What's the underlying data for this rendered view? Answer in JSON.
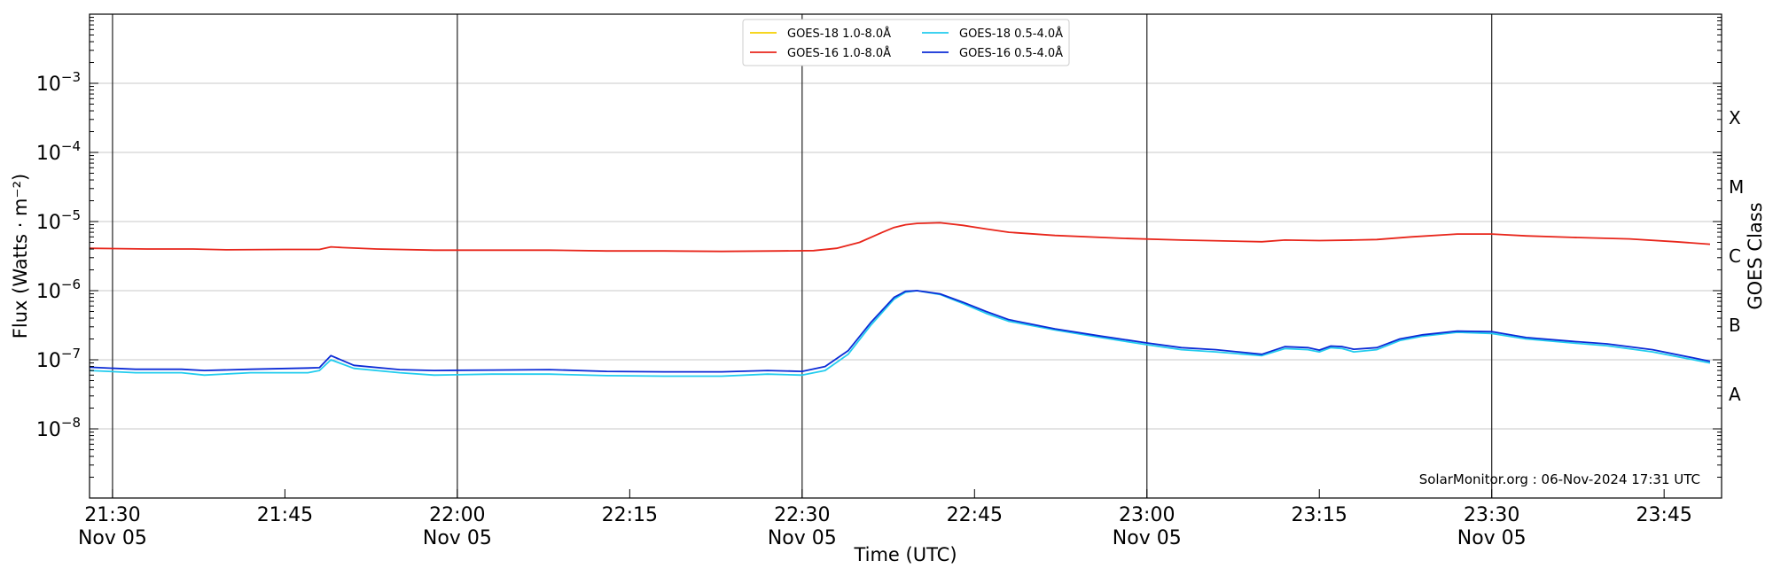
{
  "chart_data": {
    "type": "line",
    "title": "",
    "xlabel": "Time (UTC)",
    "ylabel": "Flux (Watts · m⁻²)",
    "y2label": "GOES Class",
    "yscale": "log",
    "ylim": [
      1e-09,
      0.01
    ],
    "xlim": [
      "21:28",
      "23:50"
    ],
    "grid": "horizontal",
    "legend_position": "top-center",
    "watermark": "SolarMonitor.org : 06-Nov-2024 17:31 UTC",
    "y_ticks": [
      {
        "value": 1e-08,
        "base": "10",
        "exp": "−8"
      },
      {
        "value": 1e-07,
        "base": "10",
        "exp": "−7"
      },
      {
        "value": 1e-06,
        "base": "10",
        "exp": "−6"
      },
      {
        "value": 1e-05,
        "base": "10",
        "exp": "−5"
      },
      {
        "value": 0.0001,
        "base": "10",
        "exp": "−4"
      },
      {
        "value": 0.001,
        "base": "10",
        "exp": "−3"
      }
    ],
    "x_ticks": [
      {
        "time": "21:30",
        "label": "21:30",
        "sublabel": "Nov 05"
      },
      {
        "time": "21:45",
        "label": "21:45",
        "sublabel": ""
      },
      {
        "time": "22:00",
        "label": "22:00",
        "sublabel": "Nov 05"
      },
      {
        "time": "22:15",
        "label": "22:15",
        "sublabel": ""
      },
      {
        "time": "22:30",
        "label": "22:30",
        "sublabel": "Nov 05"
      },
      {
        "time": "22:45",
        "label": "22:45",
        "sublabel": ""
      },
      {
        "time": "23:00",
        "label": "23:00",
        "sublabel": "Nov 05"
      },
      {
        "time": "23:15",
        "label": "23:15",
        "sublabel": ""
      },
      {
        "time": "23:30",
        "label": "23:30",
        "sublabel": "Nov 05"
      },
      {
        "time": "23:45",
        "label": "23:45",
        "sublabel": ""
      }
    ],
    "vertical_lines": [
      "21:30",
      "22:00",
      "22:30",
      "23:00",
      "23:30"
    ],
    "goes_classes": [
      {
        "label": "A",
        "value": 3.16e-08
      },
      {
        "label": "B",
        "value": 3.16e-07
      },
      {
        "label": "C",
        "value": 3.16e-06
      },
      {
        "label": "M",
        "value": 3.16e-05
      },
      {
        "label": "X",
        "value": 0.000316
      }
    ],
    "series": [
      {
        "name": "GOES-18 1.0-8.0Å",
        "color": "#f5d000",
        "points": []
      },
      {
        "name": "GOES-16 1.0-8.0Å",
        "color": "#e8261b",
        "points": [
          [
            "21:28",
            4.1e-06
          ],
          [
            "21:33",
            4e-06
          ],
          [
            "21:37",
            4e-06
          ],
          [
            "21:40",
            3.9e-06
          ],
          [
            "21:45",
            3.95e-06
          ],
          [
            "21:48",
            3.95e-06
          ],
          [
            "21:49",
            4.3e-06
          ],
          [
            "21:50",
            4.2e-06
          ],
          [
            "21:53",
            4e-06
          ],
          [
            "21:58",
            3.85e-06
          ],
          [
            "22:03",
            3.85e-06
          ],
          [
            "22:08",
            3.85e-06
          ],
          [
            "22:13",
            3.75e-06
          ],
          [
            "22:18",
            3.75e-06
          ],
          [
            "22:23",
            3.7e-06
          ],
          [
            "22:28",
            3.75e-06
          ],
          [
            "22:31",
            3.8e-06
          ],
          [
            "22:33",
            4.1e-06
          ],
          [
            "22:35",
            5e-06
          ],
          [
            "22:37",
            7e-06
          ],
          [
            "22:38",
            8.2e-06
          ],
          [
            "22:39",
            9e-06
          ],
          [
            "22:40",
            9.4e-06
          ],
          [
            "22:42",
            9.6e-06
          ],
          [
            "22:44",
            8.8e-06
          ],
          [
            "22:46",
            7.8e-06
          ],
          [
            "22:48",
            7e-06
          ],
          [
            "22:52",
            6.3e-06
          ],
          [
            "22:58",
            5.7e-06
          ],
          [
            "23:03",
            5.4e-06
          ],
          [
            "23:10",
            5.1e-06
          ],
          [
            "23:12",
            5.4e-06
          ],
          [
            "23:15",
            5.3e-06
          ],
          [
            "23:18",
            5.4e-06
          ],
          [
            "23:20",
            5.5e-06
          ],
          [
            "23:23",
            6e-06
          ],
          [
            "23:27",
            6.6e-06
          ],
          [
            "23:30",
            6.6e-06
          ],
          [
            "23:33",
            6.2e-06
          ],
          [
            "23:37",
            5.9e-06
          ],
          [
            "23:42",
            5.6e-06
          ],
          [
            "23:46",
            5.1e-06
          ],
          [
            "23:49",
            4.7e-06
          ]
        ]
      },
      {
        "name": "GOES-18 0.5-4.0Å",
        "color": "#22ccee",
        "points": [
          [
            "21:28",
            7e-08
          ],
          [
            "21:32",
            6.5e-08
          ],
          [
            "21:36",
            6.5e-08
          ],
          [
            "21:38",
            6e-08
          ],
          [
            "21:42",
            6.5e-08
          ],
          [
            "21:47",
            6.5e-08
          ],
          [
            "21:48",
            7e-08
          ],
          [
            "21:49",
            1e-07
          ],
          [
            "21:51",
            7.5e-08
          ],
          [
            "21:55",
            6.5e-08
          ],
          [
            "21:58",
            6e-08
          ],
          [
            "22:03",
            6.2e-08
          ],
          [
            "22:08",
            6.2e-08
          ],
          [
            "22:13",
            5.9e-08
          ],
          [
            "22:18",
            5.8e-08
          ],
          [
            "22:23",
            5.8e-08
          ],
          [
            "22:27",
            6.2e-08
          ],
          [
            "22:30",
            6e-08
          ],
          [
            "22:32",
            7e-08
          ],
          [
            "22:34",
            1.2e-07
          ],
          [
            "22:36",
            3.2e-07
          ],
          [
            "22:38",
            7.5e-07
          ],
          [
            "22:39",
            9.5e-07
          ],
          [
            "22:40",
            1e-06
          ],
          [
            "22:42",
            8.8e-07
          ],
          [
            "22:44",
            6.5e-07
          ],
          [
            "22:46",
            4.7e-07
          ],
          [
            "22:48",
            3.6e-07
          ],
          [
            "22:52",
            2.7e-07
          ],
          [
            "22:56",
            2.1e-07
          ],
          [
            "23:00",
            1.65e-07
          ],
          [
            "23:03",
            1.4e-07
          ],
          [
            "23:06",
            1.3e-07
          ],
          [
            "23:10",
            1.15e-07
          ],
          [
            "23:12",
            1.45e-07
          ],
          [
            "23:14",
            1.4e-07
          ],
          [
            "23:15",
            1.3e-07
          ],
          [
            "23:16",
            1.5e-07
          ],
          [
            "23:17",
            1.45e-07
          ],
          [
            "23:18",
            1.3e-07
          ],
          [
            "23:20",
            1.4e-07
          ],
          [
            "23:22",
            1.9e-07
          ],
          [
            "23:24",
            2.2e-07
          ],
          [
            "23:27",
            2.5e-07
          ],
          [
            "23:30",
            2.4e-07
          ],
          [
            "23:33",
            2e-07
          ],
          [
            "23:37",
            1.75e-07
          ],
          [
            "23:40",
            1.6e-07
          ],
          [
            "23:44",
            1.3e-07
          ],
          [
            "23:49",
            9e-08
          ]
        ]
      },
      {
        "name": "GOES-16 0.5-4.0Å",
        "color": "#0b2bd6",
        "points": [
          [
            "21:28",
            7.8e-08
          ],
          [
            "21:32",
            7.3e-08
          ],
          [
            "21:36",
            7.3e-08
          ],
          [
            "21:38",
            7e-08
          ],
          [
            "21:42",
            7.3e-08
          ],
          [
            "21:47",
            7.6e-08
          ],
          [
            "21:48",
            7.7e-08
          ],
          [
            "21:49",
            1.15e-07
          ],
          [
            "21:51",
            8.3e-08
          ],
          [
            "21:55",
            7.2e-08
          ],
          [
            "21:58",
            7e-08
          ],
          [
            "22:03",
            7.1e-08
          ],
          [
            "22:08",
            7.2e-08
          ],
          [
            "22:13",
            6.8e-08
          ],
          [
            "22:18",
            6.7e-08
          ],
          [
            "22:23",
            6.7e-08
          ],
          [
            "22:27",
            7e-08
          ],
          [
            "22:30",
            6.8e-08
          ],
          [
            "22:32",
            8e-08
          ],
          [
            "22:34",
            1.35e-07
          ],
          [
            "22:36",
            3.5e-07
          ],
          [
            "22:38",
            8e-07
          ],
          [
            "22:39",
            9.8e-07
          ],
          [
            "22:40",
            1e-06
          ],
          [
            "22:42",
            9e-07
          ],
          [
            "22:44",
            6.8e-07
          ],
          [
            "22:46",
            5e-07
          ],
          [
            "22:48",
            3.8e-07
          ],
          [
            "22:52",
            2.8e-07
          ],
          [
            "22:56",
            2.2e-07
          ],
          [
            "23:00",
            1.75e-07
          ],
          [
            "23:03",
            1.5e-07
          ],
          [
            "23:06",
            1.4e-07
          ],
          [
            "23:10",
            1.2e-07
          ],
          [
            "23:12",
            1.55e-07
          ],
          [
            "23:14",
            1.5e-07
          ],
          [
            "23:15",
            1.38e-07
          ],
          [
            "23:16",
            1.58e-07
          ],
          [
            "23:17",
            1.55e-07
          ],
          [
            "23:18",
            1.42e-07
          ],
          [
            "23:20",
            1.5e-07
          ],
          [
            "23:22",
            2e-07
          ],
          [
            "23:24",
            2.3e-07
          ],
          [
            "23:27",
            2.6e-07
          ],
          [
            "23:30",
            2.55e-07
          ],
          [
            "23:33",
            2.1e-07
          ],
          [
            "23:37",
            1.85e-07
          ],
          [
            "23:40",
            1.7e-07
          ],
          [
            "23:44",
            1.4e-07
          ],
          [
            "23:49",
            9.5e-08
          ]
        ]
      }
    ]
  }
}
